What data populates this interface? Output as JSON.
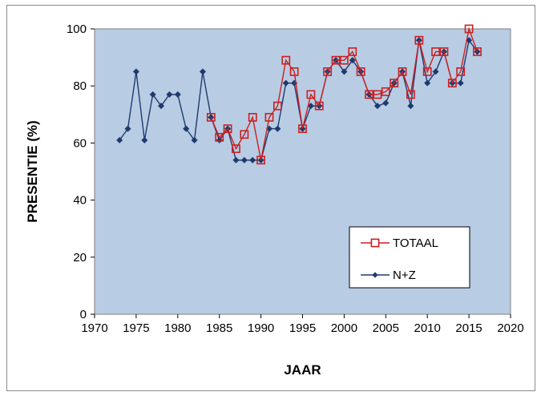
{
  "chart_data": {
    "type": "line",
    "xlabel": "JAAR",
    "ylabel": "PRESENTIE (%)",
    "xlim": [
      1970,
      2020
    ],
    "ylim": [
      0,
      100
    ],
    "xticks": [
      "1970",
      "1975",
      "1980",
      "1985",
      "1990",
      "1995",
      "2000",
      "2005",
      "2010",
      "2015",
      "2020"
    ],
    "yticks": [
      "0",
      "20",
      "40",
      "60",
      "80",
      "100"
    ],
    "grid": false,
    "legend_position": "bottom-right",
    "plot_background": "#b8cce4",
    "series": [
      {
        "name": "N+Z",
        "color": "#1f3a6e",
        "marker": "diamond",
        "x": [
          1973,
          1974,
          1975,
          1976,
          1977,
          1978,
          1979,
          1980,
          1981,
          1982,
          1983,
          1984,
          1985,
          1986,
          1987,
          1988,
          1989,
          1990,
          1991,
          1992,
          1993,
          1994,
          1995,
          1996,
          1997,
          1998,
          1999,
          2000,
          2001,
          2002,
          2003,
          2004,
          2005,
          2006,
          2007,
          2008,
          2009,
          2010,
          2011,
          2012,
          2013,
          2014,
          2015,
          2016
        ],
        "values": [
          61,
          65,
          85,
          61,
          77,
          73,
          77,
          77,
          65,
          61,
          85,
          69,
          61,
          65,
          54,
          54,
          54,
          54,
          65,
          65,
          81,
          81,
          65,
          73,
          73,
          85,
          89,
          85,
          89,
          85,
          77,
          73,
          74,
          81,
          85,
          73,
          96,
          81,
          85,
          92,
          81,
          81,
          96,
          92
        ]
      },
      {
        "name": "TOTAAL",
        "color": "#cc1f1f",
        "marker": "square",
        "x": [
          1984,
          1985,
          1986,
          1987,
          1988,
          1989,
          1990,
          1991,
          1992,
          1993,
          1994,
          1995,
          1996,
          1997,
          1998,
          1999,
          2000,
          2001,
          2002,
          2003,
          2004,
          2005,
          2006,
          2007,
          2008,
          2009,
          2010,
          2011,
          2012,
          2013,
          2014,
          2015,
          2016
        ],
        "values": [
          69,
          62,
          65,
          58,
          63,
          69,
          54,
          69,
          73,
          89,
          85,
          65,
          77,
          73,
          85,
          89,
          89,
          92,
          85,
          77,
          77,
          78,
          81,
          85,
          77,
          96,
          85,
          92,
          92,
          81,
          85,
          100,
          92
        ]
      }
    ]
  }
}
